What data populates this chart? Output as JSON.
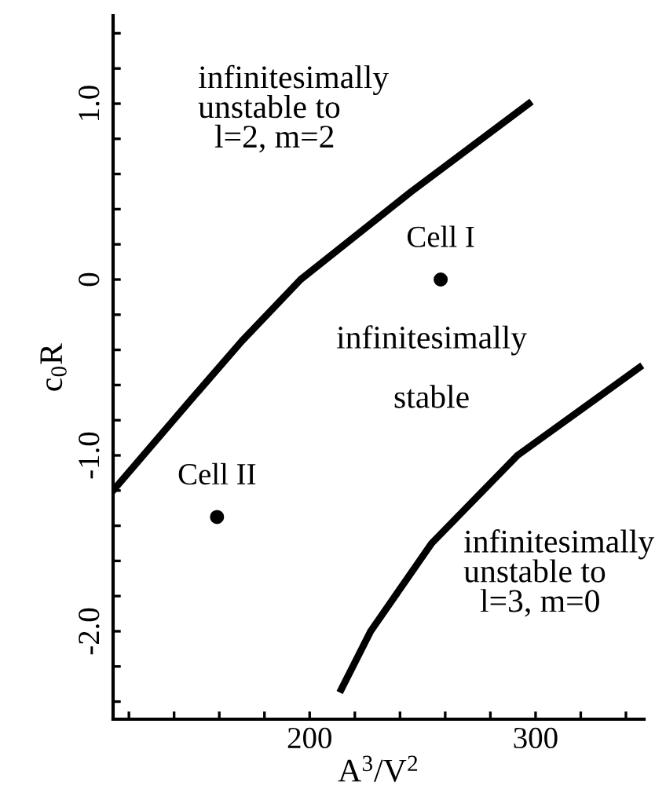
{
  "chart_data": {
    "type": "line",
    "xlabel": "A$^{3}$/V$^{2}$",
    "ylabel": "c$_{0}$R",
    "xlim": [
      113,
      348
    ],
    "ylim": [
      -2.5,
      1.5
    ],
    "xticks": [
      {
        "value": 120,
        "label": null
      },
      {
        "value": 140,
        "label": null
      },
      {
        "value": 160,
        "label": null
      },
      {
        "value": 180,
        "label": null
      },
      200,
      {
        "value": 220,
        "label": null
      },
      {
        "value": 240,
        "label": null
      },
      {
        "value": 260,
        "label": null
      },
      {
        "value": 280,
        "label": null
      },
      300,
      {
        "value": 320,
        "label": null
      },
      {
        "value": 340,
        "label": null
      }
    ],
    "yticks": [
      {
        "value": -2.4,
        "label": null
      },
      {
        "value": -2.2,
        "label": null
      },
      {
        "value": -2.0,
        "label": "-2.0"
      },
      {
        "value": -1.8,
        "label": null
      },
      {
        "value": -1.6,
        "label": null
      },
      {
        "value": -1.4,
        "label": null
      },
      {
        "value": -1.2,
        "label": null
      },
      {
        "value": -1.0,
        "label": "-1.0"
      },
      {
        "value": -0.8,
        "label": null
      },
      {
        "value": -0.6,
        "label": null
      },
      {
        "value": -0.4,
        "label": null
      },
      {
        "value": -0.2,
        "label": null
      },
      0,
      {
        "value": 0.2,
        "label": null
      },
      {
        "value": 0.4,
        "label": null
      },
      {
        "value": 0.6,
        "label": null
      },
      {
        "value": 0.8,
        "label": null
      },
      {
        "value": 1.0,
        "label": "1.0"
      },
      {
        "value": 1.2,
        "label": null
      },
      {
        "value": 1.4,
        "label": null
      }
    ],
    "grid": false,
    "legend": false,
    "series": [
      {
        "color": "#000000",
        "marker": "none",
        "line_style": "solid",
        "x": [
          113,
          145,
          170,
          196,
          245,
          297
        ],
        "values": [
          -1.2,
          -0.72,
          -0.35,
          0,
          0.5,
          1.0
        ]
      },
      {
        "color": "#000000",
        "marker": "none",
        "line_style": "solid",
        "x": [
          214,
          227,
          254,
          292,
          346
        ],
        "values": [
          -2.33,
          -2.0,
          -1.5,
          -1.0,
          -0.5
        ]
      },
      {
        "type": "scatter",
        "name": "Cell I",
        "color": "#000000",
        "marker": "circle",
        "x": [
          258
        ],
        "values": [
          0
        ]
      },
      {
        "type": "scatter",
        "name": "Cell II",
        "color": "#000000",
        "marker": "circle",
        "x": [
          159
        ],
        "values": [
          -1.35
        ]
      }
    ],
    "annotations": [
      "infinitesimally\nunstable to\n  l=2, m=2",
      "infinitesimally\n\nstable",
      "infinitesimally\nunstable to\n  l=3, m=0"
    ]
  }
}
